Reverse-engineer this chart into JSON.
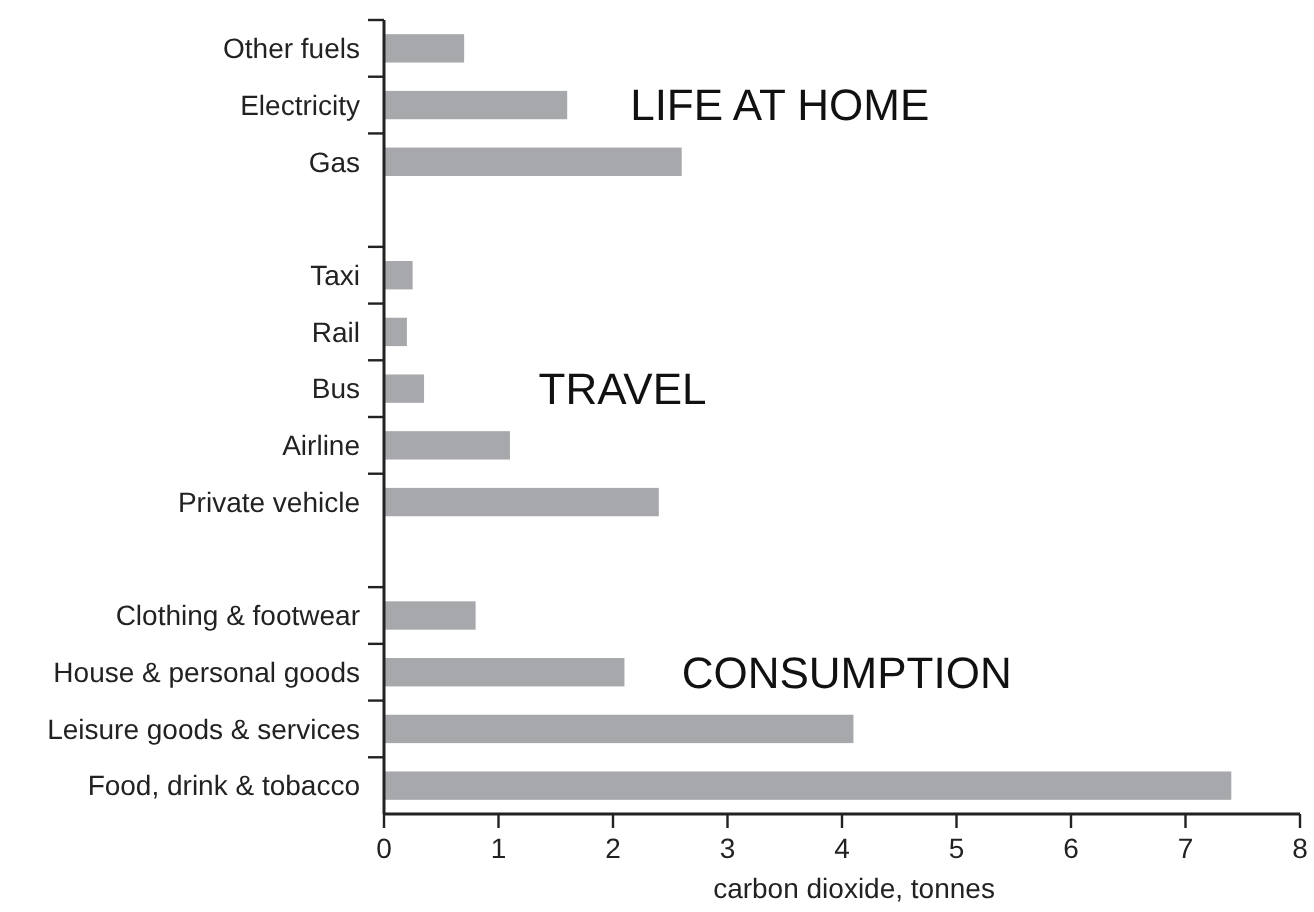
{
  "chart_data": {
    "type": "bar",
    "orientation": "horizontal",
    "xlabel": "carbon dioxide, tonnes",
    "categories": [
      "Other fuels",
      "Electricity",
      "Gas",
      null,
      "Taxi",
      "Rail",
      "Bus",
      "Airline",
      "Private vehicle",
      null,
      "Clothing & footwear",
      "House & personal goods",
      "Leisure goods & services",
      "Food, drink & tobacco"
    ],
    "values": [
      0.7,
      1.6,
      2.6,
      null,
      0.25,
      0.2,
      0.35,
      1.1,
      2.4,
      null,
      0.8,
      2.1,
      4.1,
      7.4
    ],
    "color": "#a7a8ab",
    "xlim": [
      0,
      8
    ],
    "xticks": [
      0,
      1,
      2,
      3,
      4,
      5,
      6,
      7,
      8
    ],
    "grid": false,
    "annotations": [
      "LIFE AT HOME",
      "TRAVEL",
      "CONSUMPTION"
    ]
  }
}
